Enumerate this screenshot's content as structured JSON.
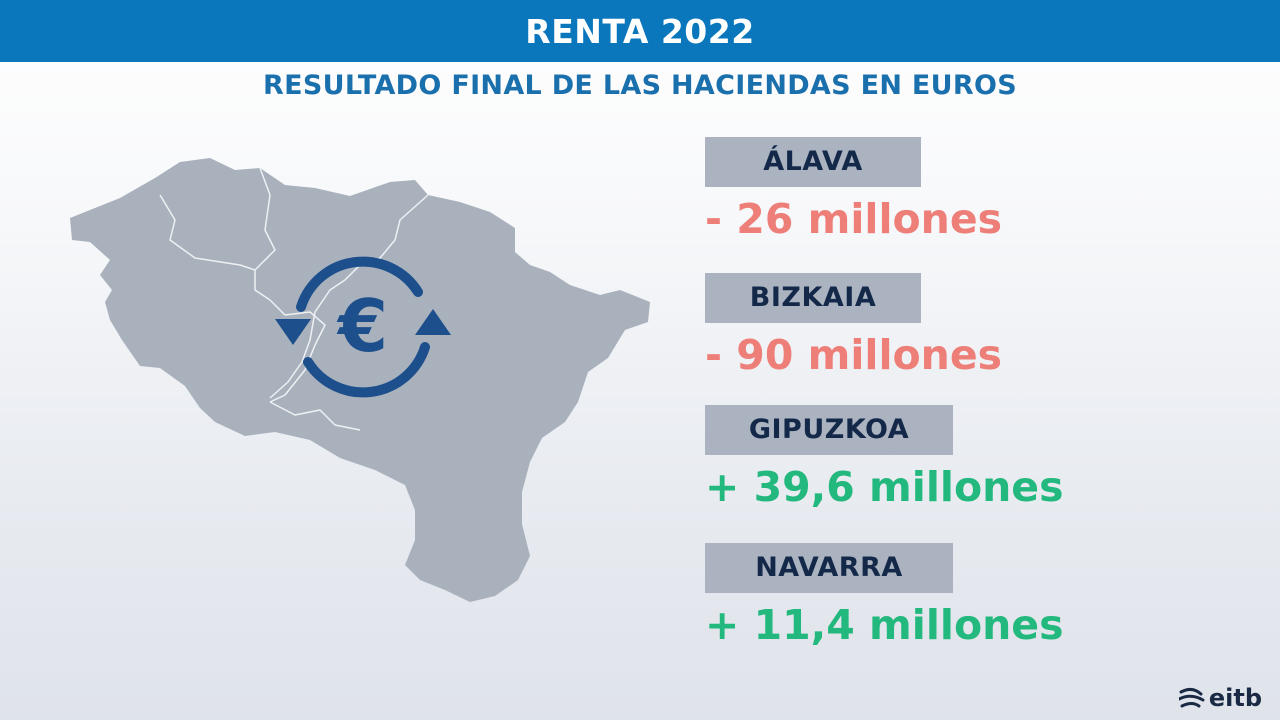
{
  "header": {
    "title": "RENTA 2022"
  },
  "subtitle": "RESULTADO FINAL DE LAS HACIENDAS EN EUROS",
  "map": {
    "icon": "euro-exchange-icon",
    "icon_symbol": "€"
  },
  "regions": [
    {
      "name": "ÁLAVA",
      "value": "- 26 millones",
      "sign": "negative"
    },
    {
      "name": "BIZKAIA",
      "value": "- 90 millones",
      "sign": "negative"
    },
    {
      "name": "GIPUZKOA",
      "value": "+ 39,6 millones",
      "sign": "positive"
    },
    {
      "name": "NAVARRA",
      "value": "+ 11,4 millones",
      "sign": "positive"
    }
  ],
  "logo": {
    "text": "eitb"
  },
  "colors": {
    "header_bg": "#0a76bb",
    "subtitle": "#1a6fad",
    "label_bg": "#aab3bf",
    "negative": "#ee7e78",
    "positive": "#22b87e",
    "map_fill": "#a9b1bc",
    "icon": "#1c4f8c"
  }
}
